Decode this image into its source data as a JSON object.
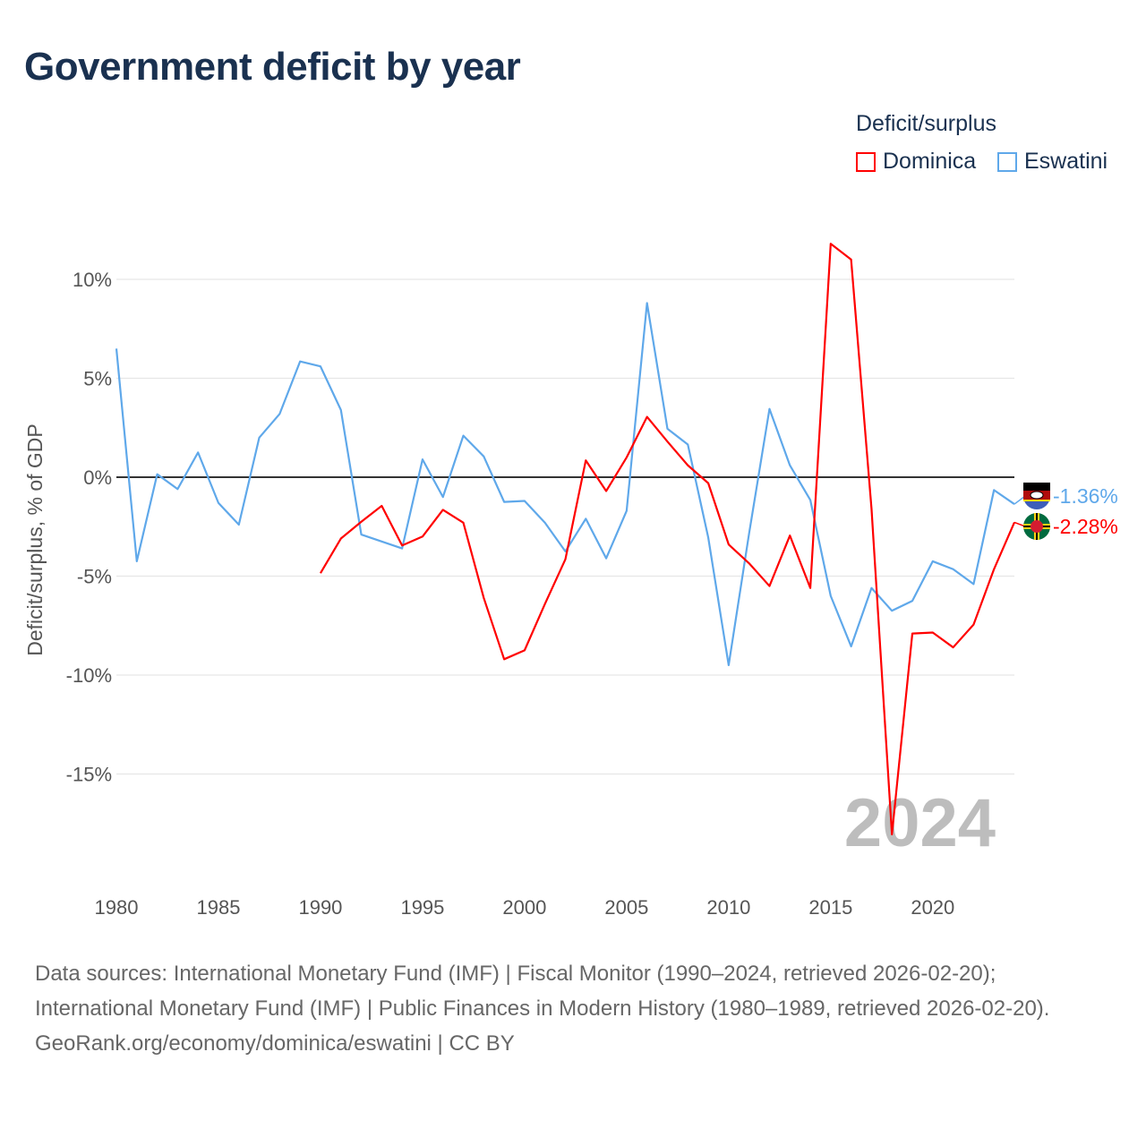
{
  "title": "Government deficit by year",
  "legend": {
    "title": "Deficit/surplus",
    "items": [
      {
        "label": "Dominica",
        "color": "#ff0000"
      },
      {
        "label": "Eswatini",
        "color": "#5fa8ea"
      }
    ]
  },
  "footer": {
    "sources": "Data sources: International Monetary Fund (IMF) | Fiscal Monitor (1990–2024, retrieved 2026-02-20); International Monetary Fund (IMF) | Public Finances in Modern History (1980–1989, retrieved 2026-02-20).",
    "credit": "GeoRank.org/economy/dominica/eswatini | CC BY"
  },
  "chart_data": {
    "type": "line",
    "title": "Government deficit by year",
    "ylabel": "Deficit/surplus, % of GDP",
    "xlabel": "",
    "ylim": [
      -19.5,
      12.5
    ],
    "xlim": [
      1980,
      2024
    ],
    "yticks": [
      10,
      5,
      0,
      -5,
      -10,
      -15
    ],
    "ytick_labels": [
      "10%",
      "5%",
      "0%",
      "-5%",
      "-10%",
      "-15%"
    ],
    "xticks": [
      1980,
      1985,
      1990,
      1995,
      2000,
      2005,
      2010,
      2015,
      2020
    ],
    "xtick_labels": [
      "1980",
      "1985",
      "1990",
      "1995",
      "2000",
      "2005",
      "2010",
      "2015",
      "2020"
    ],
    "grid": true,
    "year_watermark": "2024",
    "series": [
      {
        "name": "Eswatini",
        "color": "#5fa8ea",
        "end_label": "-1.36%",
        "x_start": 1980,
        "values": [
          6.5,
          -4.25,
          0.15,
          -0.6,
          1.25,
          -1.3,
          -2.4,
          2.0,
          3.2,
          5.85,
          5.6,
          3.4,
          -2.9,
          -3.25,
          -3.6,
          0.9,
          -1.0,
          2.1,
          1.05,
          -1.25,
          -1.2,
          -2.3,
          -3.75,
          -2.1,
          -4.1,
          -1.7,
          8.8,
          2.45,
          1.65,
          -3.05,
          -9.5,
          -2.85,
          3.45,
          0.6,
          -1.15,
          -6.0,
          -8.55,
          -5.6,
          -6.75,
          -6.25,
          -4.25,
          -4.65,
          -5.4,
          -0.65,
          -1.36
        ]
      },
      {
        "name": "Dominica",
        "color": "#ff0000",
        "end_label": "-2.28%",
        "x_start": 1990,
        "values": [
          -4.85,
          -3.1,
          -2.25,
          -1.45,
          -3.45,
          -3.0,
          -1.65,
          -2.3,
          -6.1,
          -9.2,
          -8.75,
          -6.4,
          -4.15,
          0.85,
          -0.7,
          1.0,
          3.05,
          1.8,
          0.6,
          -0.3,
          -3.4,
          -4.35,
          -5.5,
          -2.95,
          -5.6,
          11.8,
          11.0,
          -1.6,
          -18.05,
          -7.9,
          -7.85,
          -8.6,
          -7.45,
          -4.65,
          -2.28
        ]
      }
    ]
  }
}
